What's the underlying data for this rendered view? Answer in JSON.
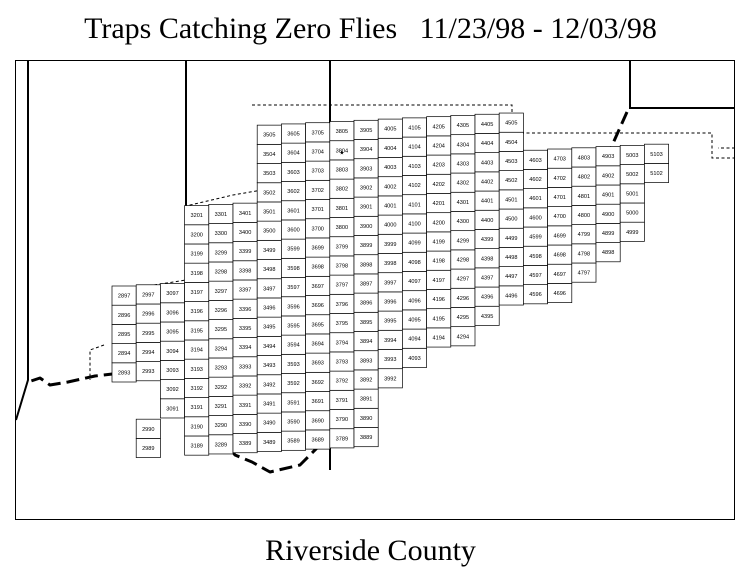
{
  "title": "Traps Catching Zero Flies   11/23/98 - 12/03/98",
  "subtitle": "Riverside County",
  "star_trap": "3804",
  "grid": {
    "columns": [
      {
        "col": 28,
        "rows": [
          93,
          94,
          95
        ]
      },
      {
        "col": 28,
        "rows": [
          96,
          97
        ]
      },
      {
        "col": 29,
        "rows": [
          89,
          90
        ]
      },
      {
        "col": 29,
        "rows": [
          93,
          94,
          95,
          96,
          97
        ]
      },
      {
        "col": 30,
        "rows": [
          91,
          92,
          93,
          94,
          95,
          96,
          97
        ]
      },
      {
        "col": 31,
        "rows": [
          89,
          90,
          91,
          92,
          93,
          94,
          95,
          96,
          97,
          98,
          99,
          100,
          101
        ]
      },
      {
        "col": 32,
        "rows": [
          89,
          90,
          91,
          92,
          93,
          94,
          95,
          96,
          97,
          98,
          99,
          100,
          101
        ]
      },
      {
        "col": 33,
        "rows": [
          89,
          90,
          91,
          92,
          93,
          94,
          95,
          96,
          97,
          98,
          99,
          100,
          101
        ]
      },
      {
        "col": 34,
        "rows": [
          89,
          90,
          91,
          92,
          93,
          94,
          95,
          96,
          97,
          98,
          99,
          100,
          101,
          102,
          103,
          104,
          105
        ]
      },
      {
        "col": 35,
        "rows": [
          89,
          90,
          91,
          92,
          93,
          94,
          95,
          96,
          97,
          98,
          99,
          100,
          101,
          102,
          103,
          104,
          105
        ]
      },
      {
        "col": 36,
        "rows": [
          89,
          90,
          91,
          92,
          93,
          94,
          95,
          96,
          97,
          98,
          99,
          100,
          101,
          102,
          103,
          104,
          105
        ]
      },
      {
        "col": 37,
        "rows": [
          89,
          90,
          91,
          92,
          93,
          94,
          95,
          96,
          97,
          98,
          99,
          100,
          101,
          102,
          103,
          104,
          105
        ]
      },
      {
        "col": 38,
        "rows": [
          89,
          90,
          91,
          92,
          93,
          94,
          95,
          96,
          97,
          98,
          99,
          100,
          101,
          102,
          103,
          104,
          105
        ]
      },
      {
        "col": 39,
        "rows": [
          92,
          93,
          94,
          95,
          96,
          97,
          98,
          99,
          100,
          101,
          102,
          103,
          104,
          105
        ]
      },
      {
        "col": 40,
        "rows": [
          93,
          94,
          95,
          96,
          97,
          98,
          99,
          100,
          101,
          102,
          103,
          104,
          105
        ]
      },
      {
        "col": 41,
        "rows": [
          94,
          95,
          96,
          97,
          98,
          99,
          100,
          101,
          102,
          103,
          104,
          105
        ]
      },
      {
        "col": 42,
        "rows": [
          94,
          95,
          96,
          97,
          98,
          99,
          100,
          101,
          102,
          103,
          104,
          105
        ]
      },
      {
        "col": 43,
        "rows": [
          95,
          96,
          97,
          98,
          99,
          100,
          101,
          102,
          103,
          104,
          105
        ]
      },
      {
        "col": 44,
        "rows": [
          96,
          97,
          98,
          99,
          100,
          101,
          102,
          103,
          104,
          105
        ]
      },
      {
        "col": 45,
        "rows": [
          96,
          97,
          98,
          99,
          100,
          101,
          102,
          103
        ]
      },
      {
        "col": 46,
        "rows": [
          96,
          97,
          98,
          99,
          100,
          101,
          102,
          103
        ]
      },
      {
        "col": 47,
        "rows": [
          97,
          98,
          99,
          100,
          101,
          102,
          103
        ]
      },
      {
        "col": 48,
        "rows": [
          98,
          99,
          100,
          101,
          102,
          103
        ]
      },
      {
        "col": 49,
        "rows": [
          99,
          100,
          101,
          102,
          103
        ]
      },
      {
        "col": 50,
        "rows": [
          102,
          103
        ]
      }
    ]
  }
}
